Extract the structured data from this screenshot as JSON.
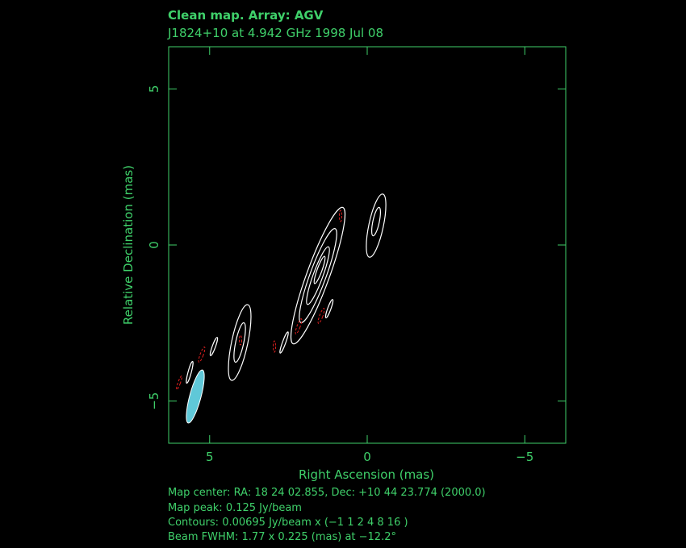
{
  "chart_data": {
    "type": "contour",
    "title": "Clean map.  Array: AGV",
    "subtitle": "J1824+10 at 4.942 GHz 1998 Jul 08",
    "x_label": "Right Ascension  (mas)",
    "y_label": "Relative Declination  (mas)",
    "xlim": [
      6.3,
      -6.3
    ],
    "ylim": [
      -6.35,
      6.35
    ],
    "xticks": [
      5,
      0,
      {
        "value": -5,
        "label": "−5"
      }
    ],
    "yticks": [
      {
        "value": -5,
        "label": "−5"
      },
      0,
      5
    ],
    "notes": [
      "Map center:  RA: 18 24 02.855,  Dec: +10 44 23.774 (2000.0)",
      "Map peak: 0.125 Jy/beam",
      "Contours: 0.00695 Jy/beam x (−1 1 2 4 8 16 )",
      "Beam FWHM: 1.77 x 0.225 (mas) at −12.2°"
    ]
  }
}
